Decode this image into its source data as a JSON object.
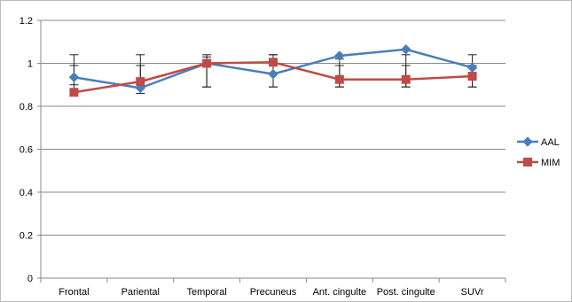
{
  "chart_data": {
    "type": "line",
    "categories": [
      "Frontal",
      "Pariental",
      "Temporal",
      "Precuneus",
      "Ant. cingulte",
      "Post. cingulte",
      "SUVr"
    ],
    "ylim": [
      0,
      1.2
    ],
    "yticks": [
      "0",
      "0.2",
      "0.4",
      "0.6",
      "0.8",
      "1",
      "1.2"
    ],
    "grid": "horizontal",
    "legend_position": "right",
    "series": [
      {
        "name": "AAL",
        "color": "#4a7ebb",
        "marker": "diamond",
        "values": [
          0.935,
          0.885,
          1.0,
          0.95,
          1.035,
          1.065,
          0.98
        ],
        "error_upper": [
          1.04,
          1.04,
          1.03,
          1.04,
          1.02,
          1.04,
          1.04
        ],
        "error_lower": [
          0.9,
          0.89,
          0.89,
          0.89,
          0.89,
          0.89,
          0.89
        ]
      },
      {
        "name": "MIM",
        "color": "#be4b48",
        "marker": "square",
        "values": [
          0.865,
          0.915,
          1.0,
          1.005,
          0.925,
          0.925,
          0.94
        ],
        "error_upper": [
          0.99,
          0.99,
          1.04,
          1.04,
          0.99,
          0.99,
          0.99
        ],
        "error_lower": [
          0.86,
          0.86,
          0.89,
          0.89,
          0.89,
          0.89,
          0.89
        ]
      }
    ]
  }
}
